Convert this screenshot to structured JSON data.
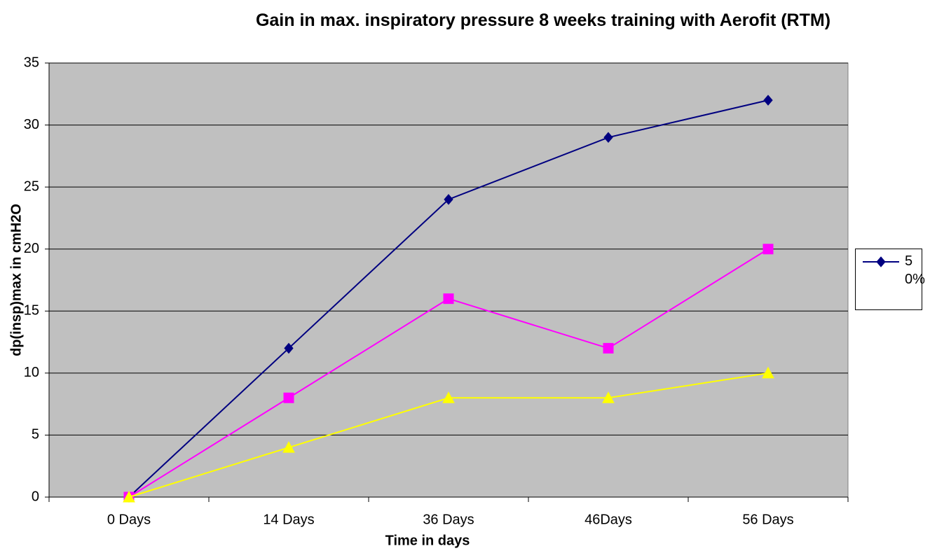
{
  "chart_data": {
    "type": "line",
    "title": "Gain in max. inspiratory pressure 8 weeks training with Aerofit (RTM)",
    "x_label": "Time in days",
    "y_label": "dp(insp)max in cmH2O",
    "categories": [
      "0 Days",
      "14 Days",
      "36 Days",
      "46Days",
      "56 Days"
    ],
    "series": [
      {
        "name": "50%",
        "color": "#000080",
        "marker": "diamond",
        "values": [
          0,
          12,
          24,
          29,
          32
        ]
      },
      {
        "color": "#ff00ff",
        "marker": "square",
        "values": [
          0,
          8,
          16,
          12,
          20
        ]
      },
      {
        "color": "#ffff00",
        "marker": "triangle",
        "values": [
          0,
          4,
          8,
          8,
          10
        ]
      }
    ],
    "ylim": [
      0,
      35
    ],
    "yticks": [
      0,
      5,
      10,
      15,
      20,
      25,
      30,
      35
    ],
    "grid": true,
    "legend": "right",
    "background": "#c0c0c0"
  }
}
